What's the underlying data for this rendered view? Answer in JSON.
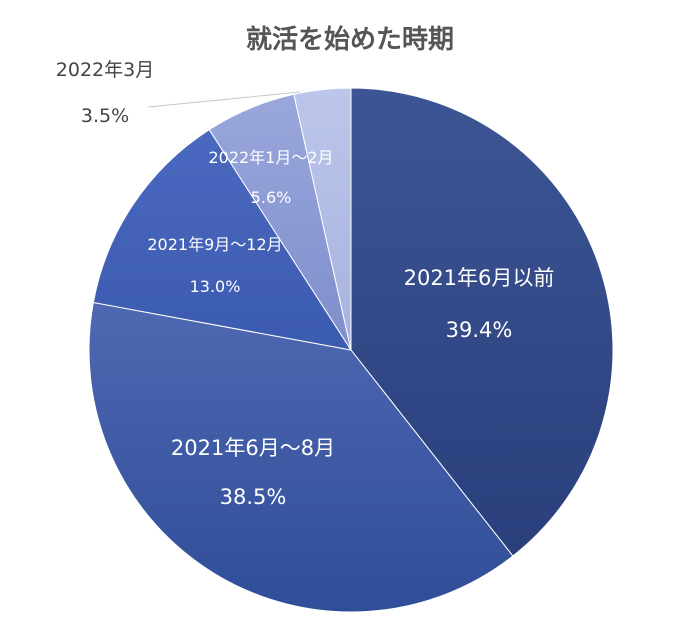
{
  "chart_data": {
    "type": "pie",
    "title": "就活を始めた時期",
    "categories": [
      "2021年6月以前",
      "2021年6月～8月",
      "2021年9月～12月",
      "2022年1月～2月",
      "2022年3月"
    ],
    "values": [
      39.4,
      38.5,
      13.0,
      5.6,
      3.5
    ],
    "value_labels": [
      "39.4%",
      "38.5%",
      "13.0%",
      "5.6%",
      "3.5%"
    ],
    "start": "12 o'clock",
    "direction": "clockwise",
    "legend": "none",
    "colors": [
      "#324a8a",
      "#3a58a4",
      "#3f60b4",
      "#8c9ad2",
      "#b0bbe2"
    ]
  }
}
